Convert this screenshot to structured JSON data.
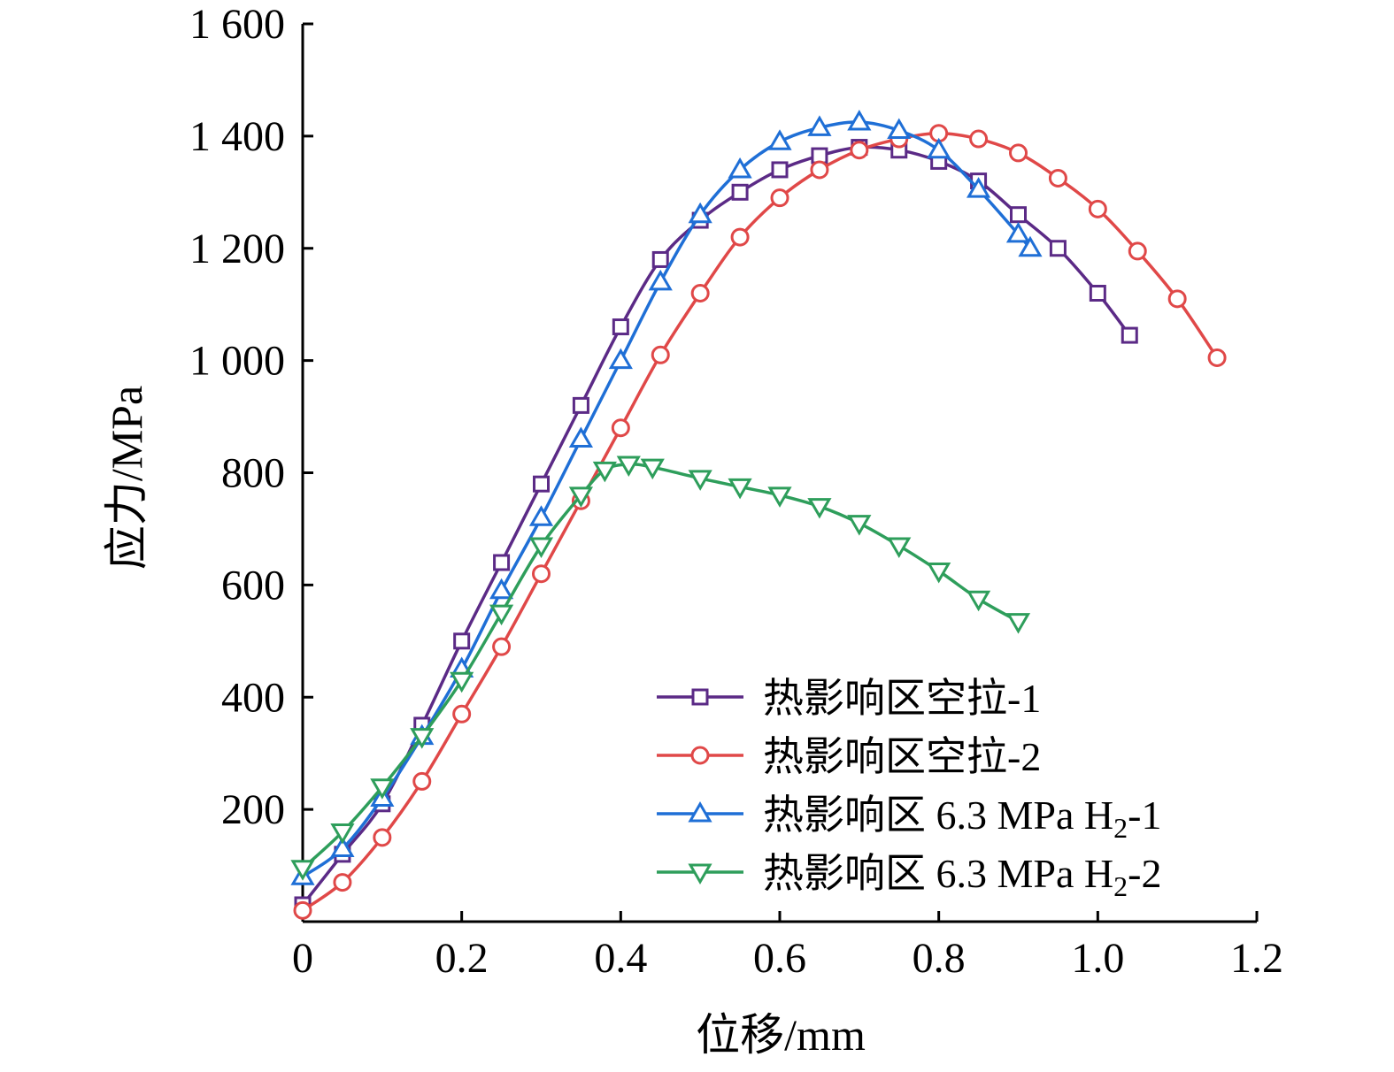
{
  "chart_data": {
    "type": "line",
    "xlabel": "位移/mm",
    "ylabel": "应力/MPa",
    "xlim": [
      0,
      1.2
    ],
    "ylim": [
      0,
      1600
    ],
    "x_ticks": [
      {
        "value": 0,
        "label": "0"
      },
      {
        "value": 0.2,
        "label": "0.2"
      },
      {
        "value": 0.4,
        "label": "0.4"
      },
      {
        "value": 0.6,
        "label": "0.6"
      },
      {
        "value": 0.8,
        "label": "0.8"
      },
      {
        "value": 1.0,
        "label": "1.0"
      },
      {
        "value": 1.2,
        "label": "1.2"
      }
    ],
    "y_ticks": [
      {
        "value": 200,
        "label": "200"
      },
      {
        "value": 400,
        "label": "400"
      },
      {
        "value": 600,
        "label": "600"
      },
      {
        "value": 800,
        "label": "800"
      },
      {
        "value": 1000,
        "label": "1 000"
      },
      {
        "value": 1200,
        "label": "1 200"
      },
      {
        "value": 1400,
        "label": "1 400"
      },
      {
        "value": 1600,
        "label": "1 600"
      }
    ],
    "grid": false,
    "legend_position": "bottom-right",
    "series": [
      {
        "name": "热影响区空拉-1",
        "legend_label": "热影响区空拉-1",
        "color": "#5b2a86",
        "marker": "square",
        "x": [
          0.0,
          0.05,
          0.1,
          0.15,
          0.2,
          0.25,
          0.3,
          0.35,
          0.4,
          0.45,
          0.5,
          0.55,
          0.6,
          0.65,
          0.7,
          0.75,
          0.8,
          0.85,
          0.9,
          0.95,
          1.0,
          1.04
        ],
        "y": [
          30,
          120,
          210,
          350,
          500,
          640,
          780,
          920,
          1060,
          1180,
          1250,
          1300,
          1340,
          1365,
          1380,
          1375,
          1355,
          1320,
          1260,
          1200,
          1120,
          1045
        ]
      },
      {
        "name": "热影响区空拉-2",
        "legend_label": "热影响区空拉-2",
        "color": "#e04848",
        "marker": "circle",
        "x": [
          0.0,
          0.05,
          0.1,
          0.15,
          0.2,
          0.25,
          0.3,
          0.35,
          0.4,
          0.45,
          0.5,
          0.55,
          0.6,
          0.65,
          0.7,
          0.75,
          0.8,
          0.85,
          0.9,
          0.95,
          1.0,
          1.05,
          1.1,
          1.15
        ],
        "y": [
          20,
          70,
          150,
          250,
          370,
          490,
          620,
          750,
          880,
          1010,
          1120,
          1220,
          1290,
          1340,
          1375,
          1395,
          1405,
          1395,
          1370,
          1325,
          1270,
          1195,
          1110,
          1005
        ]
      },
      {
        "name": "热影响区 6.3 MPa H2-1",
        "legend_label": "热影响区 6.3 MPa H",
        "legend_sub": "2",
        "legend_suffix": "-1",
        "color": "#1f6fd6",
        "marker": "triangle-up",
        "x": [
          0.0,
          0.05,
          0.1,
          0.15,
          0.2,
          0.25,
          0.3,
          0.35,
          0.4,
          0.45,
          0.5,
          0.55,
          0.6,
          0.65,
          0.7,
          0.75,
          0.8,
          0.85,
          0.9,
          0.915
        ],
        "y": [
          80,
          130,
          220,
          330,
          450,
          590,
          720,
          860,
          1000,
          1140,
          1260,
          1340,
          1390,
          1415,
          1425,
          1410,
          1375,
          1305,
          1225,
          1200
        ]
      },
      {
        "name": "热影响区 6.3 MPa H2-2",
        "legend_label": "热影响区 6.3 MPa H",
        "legend_sub": "2",
        "legend_suffix": "-2",
        "color": "#2e9e5b",
        "marker": "triangle-down",
        "x": [
          0.0,
          0.05,
          0.1,
          0.15,
          0.2,
          0.25,
          0.3,
          0.35,
          0.38,
          0.41,
          0.44,
          0.5,
          0.55,
          0.6,
          0.65,
          0.7,
          0.75,
          0.8,
          0.85,
          0.9
        ],
        "y": [
          95,
          160,
          240,
          330,
          430,
          550,
          670,
          760,
          805,
          815,
          810,
          790,
          775,
          760,
          740,
          710,
          670,
          625,
          575,
          535
        ]
      }
    ]
  }
}
